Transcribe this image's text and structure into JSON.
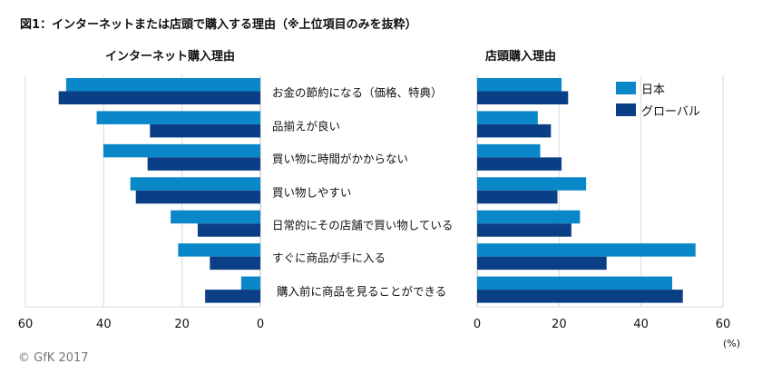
{
  "title": "図1：インターネットまたは店頭で購入する理由（※上位項目のみを抜粋）",
  "copyright": "© GfK 2017",
  "colors": {
    "japan": "#0a87c8",
    "global": "#0b3f85",
    "grid": "#d9d9d9"
  },
  "chart_data": [
    {
      "type": "bar",
      "orientation": "horizontal-reversed",
      "title": "インターネット購入理由",
      "categories": [
        "お金の節約になる（価格、特典）",
        "品揃えが良い",
        "買い物に時間がかからない",
        "買い物しやすい",
        "日常的にその店舗で買い物している",
        "すぐに商品が手に入る",
        "購入前に商品を見ることができる"
      ],
      "series": [
        {
          "name": "日本",
          "values": [
            49.6,
            41.8,
            40.1,
            33.2,
            22.9,
            21.0,
            4.9
          ]
        },
        {
          "name": "グローバル",
          "values": [
            51.5,
            28.2,
            28.8,
            31.8,
            16.0,
            12.9,
            14.1
          ]
        }
      ],
      "xlim": [
        0,
        60
      ],
      "ticks": [
        "60",
        "40",
        "20",
        "0"
      ],
      "grid": true
    },
    {
      "type": "bar",
      "orientation": "horizontal",
      "title": "店頭購入理由",
      "categories": [
        "お金の節約になる（価格、特典）",
        "品揃えが良い",
        "買い物に時間がかからない",
        "買い物しやすい",
        "日常的にその店舗で買い物している",
        "すぐに商品が手に入る",
        "購入前に商品を見ることができる"
      ],
      "series": [
        {
          "name": "日本",
          "values": [
            20.6,
            14.8,
            15.4,
            26.6,
            25.1,
            53.3,
            47.6
          ]
        },
        {
          "name": "グローバル",
          "values": [
            22.2,
            18.0,
            20.6,
            19.6,
            23.0,
            31.6,
            50.2
          ]
        }
      ],
      "xlim": [
        0,
        60
      ],
      "ticks": [
        "0",
        "20",
        "40",
        "60"
      ],
      "xlabel": "(%)",
      "grid": true,
      "legend": "top-right"
    }
  ]
}
